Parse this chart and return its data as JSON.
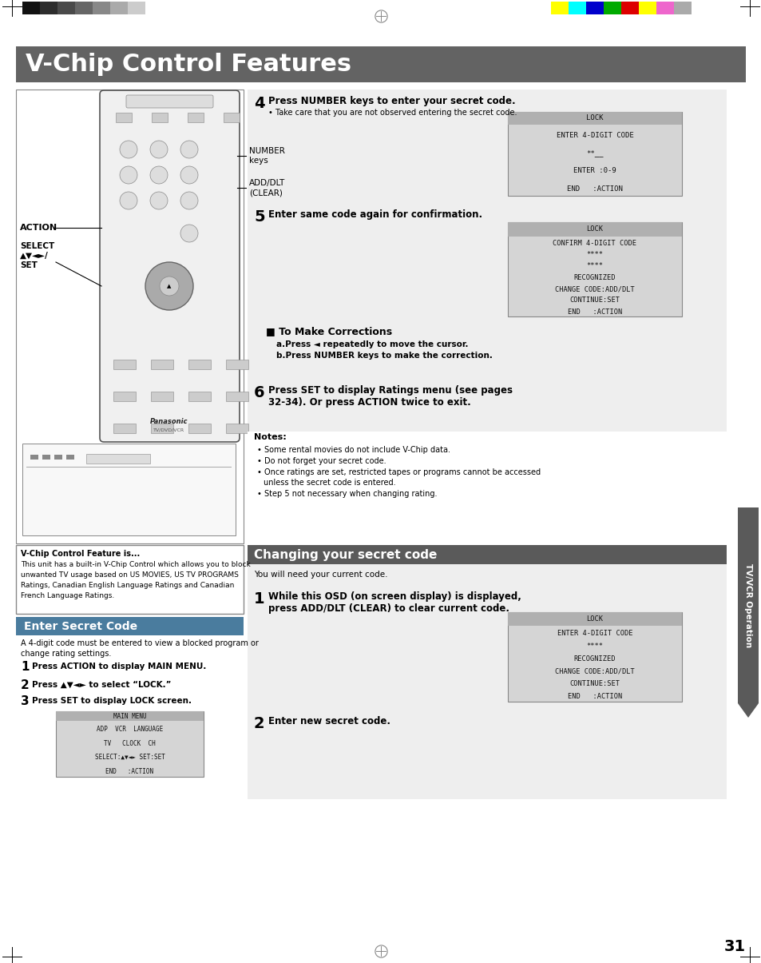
{
  "title": "V-Chip Control Features",
  "title_bg": "#636363",
  "title_color": "#ffffff",
  "page_bg": "#ffffff",
  "section1_title": "Enter Secret Code",
  "section1_bg": "#4a7c9e",
  "section1_color": "#ffffff",
  "section2_title": "Changing your secret code",
  "section2_bg": "#5a5a5a",
  "section2_color": "#ffffff",
  "sidebar_text": "TV/VCR Operation",
  "sidebar_bg": "#5a5a5a",
  "sidebar_color": "#ffffff",
  "page_number": "31",
  "step4_bold": "Press NUMBER keys to enter your secret code.",
  "step4_sub": "Take care that you are not observed entering the secret code.",
  "step5_bold": "Enter same code again for confirmation.",
  "step6_bold_1": "Press SET to display Ratings menu (see pages",
  "step6_bold_2": "32-34). Or press ACTION twice to exit.",
  "notes_title": "Notes:",
  "notes": [
    "Some rental movies do not include V-Chip data.",
    "Do not forget your secret code.",
    [
      "Once ratings are set, restricted tapes or programs cannot be accessed",
      "unless the secret code is entered."
    ],
    "Step 5 not necessary when changing rating."
  ],
  "you_will_need": "You will need your current code.",
  "ch1_bold_1": "While this OSD (on screen display) is displayed,",
  "ch1_bold_2": "press ADD/DLT (CLEAR) to clear current code.",
  "ch2_bold": "Enter new secret code.",
  "step1_bold": "Press ACTION to display MAIN MENU.",
  "step2_bold": "Press ▲▼◄► to select “LOCK.”",
  "step3_bold": "Press SET to display LOCK screen.",
  "corrections_title": "To Make Corrections",
  "corrections_a": "a.Press ◄ repeatedly to move the cursor.",
  "corrections_b": "b.Press NUMBER keys to make the correction.",
  "lock_screen1_lines": [
    "LOCK",
    "ENTER 4-DIGIT CODE",
    "**__",
    "ENTER :0-9",
    "END   :ACTION"
  ],
  "lock_screen2_lines": [
    "LOCK",
    "CONFIRM 4-DIGIT CODE",
    "****",
    "****",
    "RECOGNIZED",
    "CHANGE CODE:ADD/DLT",
    "CONTINUE:SET",
    "END   :ACTION"
  ],
  "lock_screen3_lines": [
    "LOCK",
    "ENTER 4-DIGIT CODE",
    "****",
    "RECOGNIZED",
    "CHANGE CODE:ADD/DLT",
    "CONTINUE:SET",
    "END   :ACTION"
  ],
  "main_menu_lines": [
    "MAIN MENU",
    "ADP  VCR  LANGUAGE",
    "TV   CLOCK  CH",
    "SELECT:▲▼◄► SET:SET",
    "END   :ACTION"
  ],
  "number_keys_label": "NUMBER\nkeys",
  "addDlt_label": "ADD/DLT\n(CLEAR)",
  "action_label": "ACTION",
  "select_label": "SELECT\n▲▼◄►/\nSET",
  "bar_colors_left": [
    "#111111",
    "#2d2d2d",
    "#4a4a4a",
    "#666666",
    "#888888",
    "#aaaaaa",
    "#cccccc",
    "#ffffff"
  ],
  "bar_colors_right": [
    "#ffff00",
    "#00ffff",
    "#0000cc",
    "#00aa00",
    "#dd0000",
    "#ffff00",
    "#ee66cc",
    "#aaaaaa"
  ],
  "vchip_feature_title": "V-Chip Control Feature is...",
  "vchip_feature_body": [
    "This unit has a built-in V-Chip Control which allows you to block",
    "unwanted TV usage based on US MOVIES, US TV PROGRAMS",
    "Ratings, Canadian English Language Ratings and Canadian",
    "French Language Ratings."
  ],
  "esc_intro": [
    "A 4-digit code must be entered to view a blocked program or",
    "change rating settings."
  ]
}
